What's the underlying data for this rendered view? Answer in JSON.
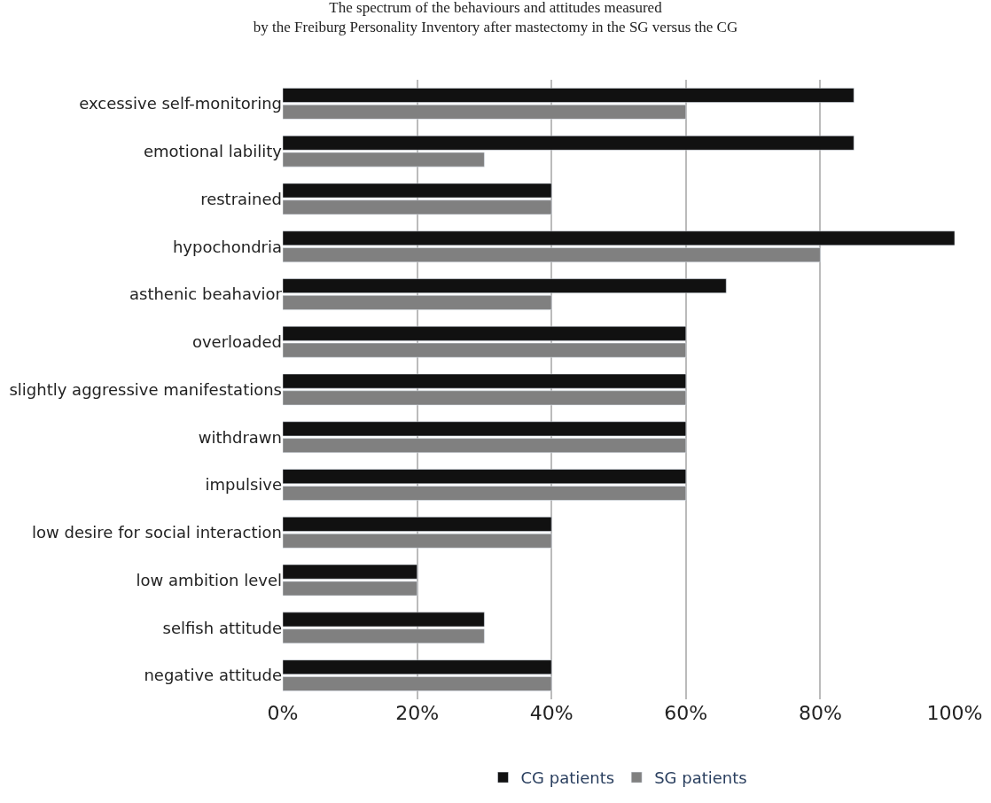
{
  "chart_data": {
    "type": "bar",
    "orientation": "horizontal",
    "title": "The spectrum of the behaviours and attitudes measured\nby the Freiburg Personality Inventory after mastectomy in the SG versus the CG",
    "categories": [
      "excessive self-monitoring",
      "emotional lability",
      "restrained",
      "hypochondria",
      "asthenic beahavior",
      "overloaded",
      "slightly aggressive manifestations",
      "withdrawn",
      "impulsive",
      "low desire for social interaction",
      "low ambition level",
      "selfish attitude",
      "negative attitude"
    ],
    "series": [
      {
        "name": "CG patients",
        "color": "#111111",
        "values": [
          85,
          85,
          40,
          100,
          66,
          60,
          60,
          60,
          60,
          40,
          20,
          30,
          40
        ]
      },
      {
        "name": "SG patients",
        "color": "#808080",
        "values": [
          60,
          30,
          40,
          80,
          40,
          60,
          60,
          60,
          60,
          40,
          20,
          30,
          40
        ]
      }
    ],
    "xlim": [
      0,
      100
    ],
    "xticks": [
      {
        "value": 0,
        "label": "0%"
      },
      {
        "value": 20,
        "label": "20%"
      },
      {
        "value": 40,
        "label": "40%"
      },
      {
        "value": 60,
        "label": "60%"
      },
      {
        "value": 80,
        "label": "80%"
      },
      {
        "value": 100,
        "label": "100%"
      }
    ],
    "grid": "x",
    "legend": "bottom"
  }
}
